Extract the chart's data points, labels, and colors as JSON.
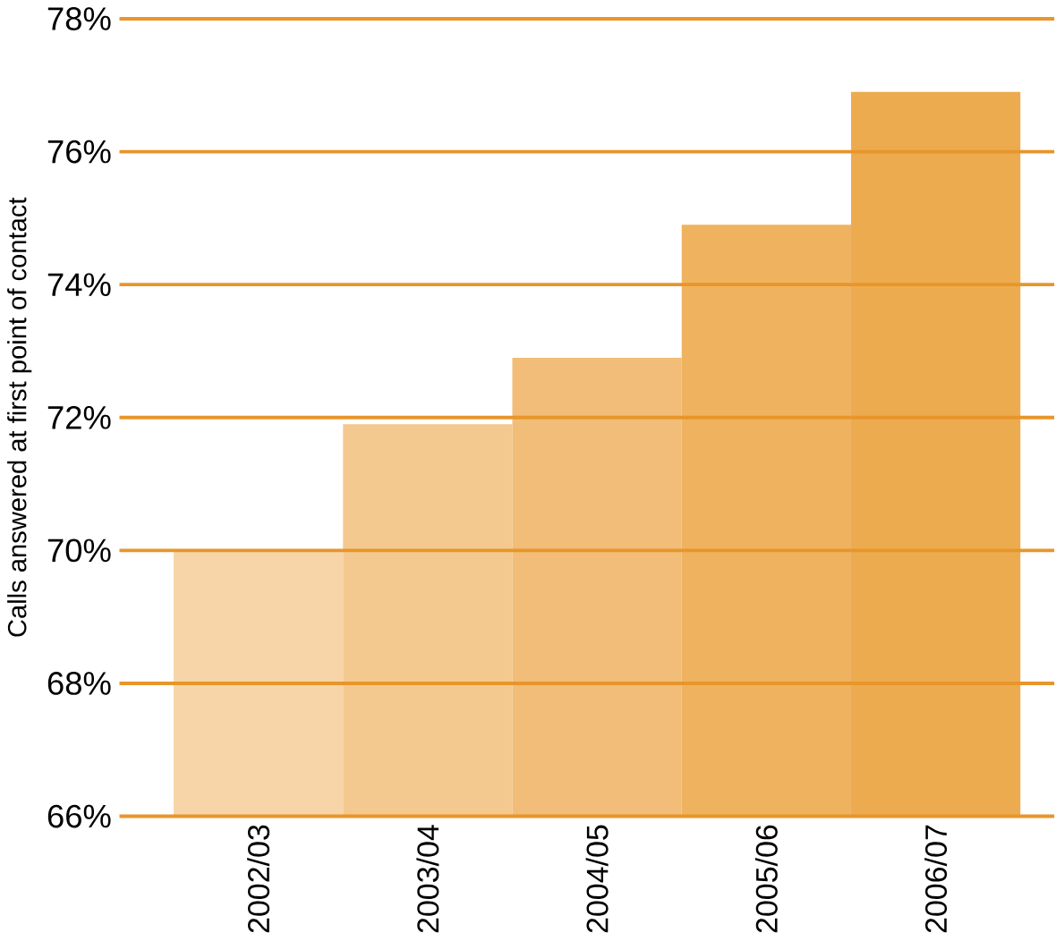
{
  "chart_data": {
    "type": "bar",
    "ylabel": "Calls answered at first point of contact",
    "categories": [
      "2002/03",
      "2003/04",
      "2004/05",
      "2005/06",
      "2006/07"
    ],
    "values": [
      70,
      71.9,
      72.9,
      74.9,
      76.9
    ],
    "colors": [
      "#f7d5a8",
      "#f4c98f",
      "#f1bd78",
      "#efb35f",
      "#edab4f"
    ],
    "ylim": [
      66,
      78
    ],
    "yticks": [
      {
        "value": 66,
        "label": "66%"
      },
      {
        "value": 68,
        "label": "68%"
      },
      {
        "value": 70,
        "label": "70%"
      },
      {
        "value": 72,
        "label": "72%"
      },
      {
        "value": 74,
        "label": "74%"
      },
      {
        "value": 76,
        "label": "76%"
      },
      {
        "value": 78,
        "label": "78%"
      }
    ],
    "grid": "y"
  }
}
